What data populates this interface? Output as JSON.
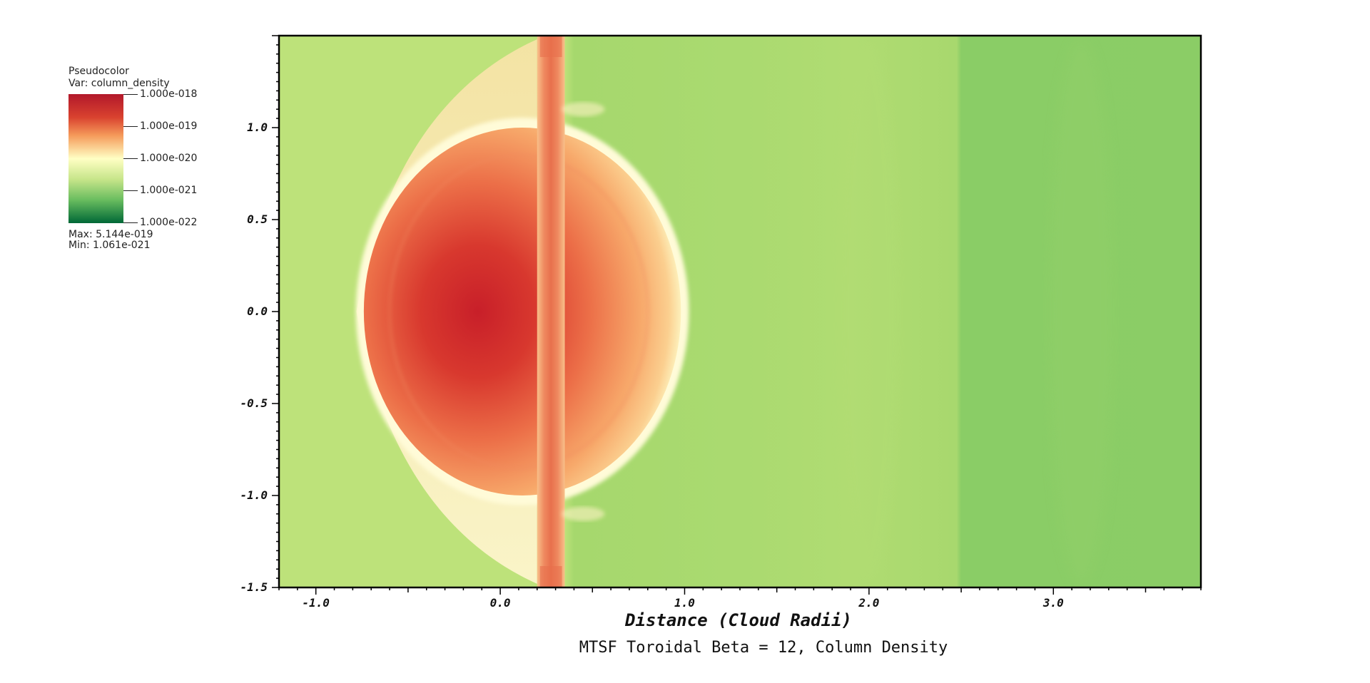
{
  "legend": {
    "plot_type": "Pseudocolor",
    "variable": "Var: column_density",
    "tick_labels": [
      "1.000e-018",
      "1.000e-019",
      "1.000e-020",
      "1.000e-021",
      "1.000e-022"
    ],
    "max_text": "Max:  5.144e-019",
    "min_text": "Min:  1.061e-021",
    "colors": [
      "#b2182b",
      "#e34a33",
      "#f4a261",
      "#ffffc4",
      "#c7e58a",
      "#86cc66",
      "#1a9850",
      "#006837"
    ]
  },
  "chart_data": {
    "type": "heatmap",
    "title": "MTSF Toroidal Beta = 12, Column Density",
    "xlabel": "Distance (Cloud Radii)",
    "ylabel": "",
    "xlim": [
      -1.2,
      3.8
    ],
    "ylim": [
      -1.5,
      1.5
    ],
    "x_ticks": [
      -1.0,
      0.0,
      1.0,
      2.0,
      3.0
    ],
    "x_tick_labels": [
      "-1.0",
      "0.0",
      "1.0",
      "2.0",
      "3.0"
    ],
    "y_ticks": [
      -1.5,
      -1.0,
      -0.5,
      0.0,
      0.5,
      1.0
    ],
    "y_tick_labels": [
      "-1.5",
      "-1.0",
      "-0.5",
      "0.0",
      "0.5",
      "1.0"
    ],
    "colorbar_range": [
      "1.000e-022",
      "1.000e-018"
    ],
    "colorbar_scale": "log",
    "background_colors": {
      "upstream": "#bde27a",
      "downstream_mid": "#a9d96f",
      "downstream_far": "#8acd66"
    },
    "cloud_center": [
      0.0,
      0.0
    ],
    "cloud_colors": {
      "core": "#c8202a",
      "mid": "#ec7a52",
      "edge": "#f9c48a",
      "shock": "#fdfbd6"
    }
  }
}
